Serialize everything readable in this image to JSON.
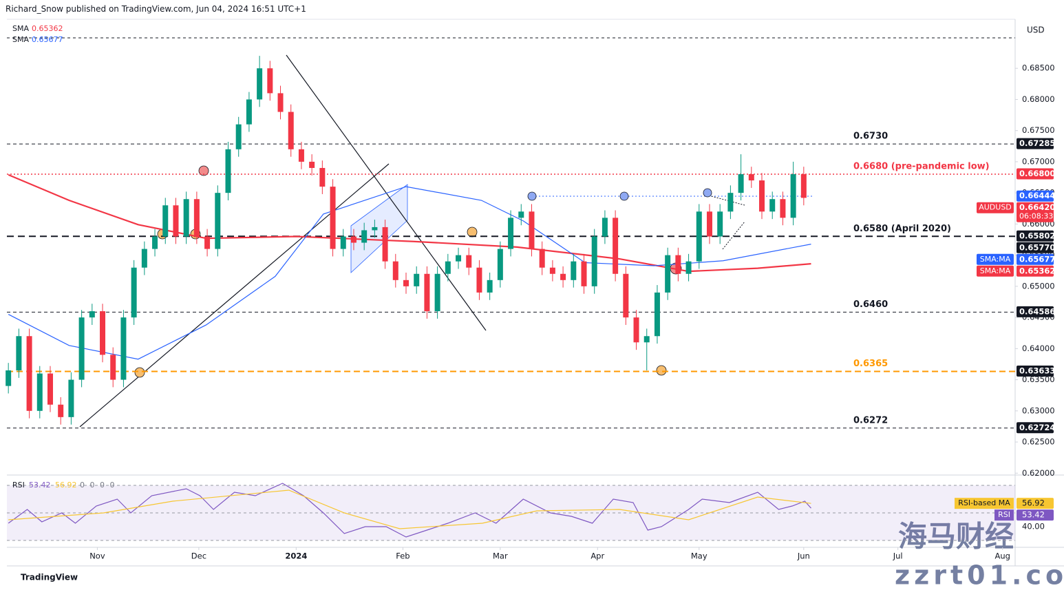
{
  "header": "Richard_Snow published on TradingView.com, Jun 04, 2024 16:51 UTC+1",
  "currency": "USD",
  "footer": "TradingView",
  "watermark": {
    "cn": "海马财经",
    "url": "zzrt01.com"
  },
  "chart_data": [
    {
      "type": "candlestick",
      "up_color": "#089981",
      "down_color": "#f23645",
      "xlim": [
        -0.8,
        96.2
      ],
      "xticks": [
        {
          "value": 8.5,
          "label": "Nov"
        },
        {
          "value": 18.2,
          "label": "Dec"
        },
        {
          "value": 27.5,
          "label": "2024"
        },
        {
          "value": 37.7,
          "label": "Feb"
        },
        {
          "value": 47,
          "label": "Mar"
        },
        {
          "value": 56.3,
          "label": "Apr"
        },
        {
          "value": 66,
          "label": "May"
        },
        {
          "value": 76,
          "label": "Jun"
        },
        {
          "value": 85,
          "label": "Jul"
        },
        {
          "value": 95,
          "label": "Aug"
        }
      ],
      "ylim": [
        0.6197,
        0.69265
      ],
      "yticks": [
        {
          "value": 0.685,
          "label": "0.68500"
        },
        {
          "value": 0.68,
          "label": "0.68000"
        },
        {
          "value": 0.675,
          "label": "0.67500"
        },
        {
          "value": 0.67,
          "label": "0.67000"
        },
        {
          "value": 0.665,
          "label": "0.66500"
        },
        {
          "value": 0.66,
          "label": "0.66000"
        },
        {
          "value": 0.655,
          "label": "0.65500"
        },
        {
          "value": 0.65,
          "label": "0.65000"
        },
        {
          "value": 0.645,
          "label": "0.64500"
        },
        {
          "value": 0.64,
          "label": "0.64000"
        },
        {
          "value": 0.635,
          "label": "0.63500"
        },
        {
          "value": 0.63,
          "label": "0.63000"
        },
        {
          "value": 0.625,
          "label": "0.62500"
        },
        {
          "value": 0.62,
          "label": "0.62000"
        }
      ],
      "open": [
        0.634,
        0.6365,
        0.642,
        0.63,
        0.636,
        0.631,
        0.629,
        0.635,
        0.645,
        0.646,
        0.639,
        0.635,
        0.645,
        0.653,
        0.656,
        0.658,
        0.663,
        0.658,
        0.664,
        0.658,
        0.656,
        0.665,
        0.672,
        0.676,
        0.68,
        0.685,
        0.681,
        0.678,
        0.672,
        0.67,
        0.669,
        0.666,
        0.656,
        0.658,
        0.657,
        0.659,
        0.6595,
        0.654,
        0.651,
        0.65,
        0.652,
        0.646,
        0.652,
        0.654,
        0.655,
        0.653,
        0.649,
        0.651,
        0.656,
        0.661,
        0.662,
        0.656,
        0.653,
        0.652,
        0.651,
        0.654,
        0.65,
        0.658,
        0.661,
        0.652,
        0.645,
        0.641,
        0.642,
        0.649,
        0.655,
        0.652,
        0.654,
        0.662,
        0.658,
        0.662,
        0.665,
        0.668,
        0.667,
        0.662,
        0.664,
        0.661,
        0.668
      ],
      "high": [
        0.6377,
        0.6432,
        0.6432,
        0.6372,
        0.6372,
        0.6322,
        0.6362,
        0.6462,
        0.6472,
        0.6472,
        0.6402,
        0.6462,
        0.6542,
        0.6572,
        0.6592,
        0.6642,
        0.6642,
        0.6652,
        0.6652,
        0.6592,
        0.6662,
        0.6732,
        0.6772,
        0.6812,
        0.687,
        0.6862,
        0.6822,
        0.6792,
        0.6732,
        0.6712,
        0.6702,
        0.6672,
        0.6592,
        0.6592,
        0.6602,
        0.6607,
        0.6607,
        0.6552,
        0.6522,
        0.6532,
        0.6532,
        0.6532,
        0.6552,
        0.6562,
        0.6562,
        0.6542,
        0.6522,
        0.6572,
        0.6622,
        0.6632,
        0.6632,
        0.6572,
        0.6542,
        0.6532,
        0.6552,
        0.6552,
        0.6592,
        0.6622,
        0.6622,
        0.6532,
        0.6462,
        0.6432,
        0.6502,
        0.6562,
        0.6562,
        0.6552,
        0.6632,
        0.6632,
        0.6632,
        0.6662,
        0.6712,
        0.6692,
        0.6682,
        0.6652,
        0.6652,
        0.67,
        0.6692
      ],
      "low": [
        0.6328,
        0.6353,
        0.6288,
        0.6288,
        0.6298,
        0.6278,
        0.6278,
        0.6338,
        0.6438,
        0.6378,
        0.6338,
        0.6338,
        0.6438,
        0.6518,
        0.6548,
        0.6568,
        0.6568,
        0.6568,
        0.6568,
        0.6548,
        0.6548,
        0.6638,
        0.6708,
        0.6748,
        0.6788,
        0.6798,
        0.6768,
        0.6708,
        0.6688,
        0.6678,
        0.6648,
        0.6548,
        0.6548,
        0.6558,
        0.6558,
        0.6578,
        0.6528,
        0.6498,
        0.6488,
        0.6488,
        0.6448,
        0.6448,
        0.6508,
        0.6528,
        0.6518,
        0.6478,
        0.6478,
        0.6498,
        0.6548,
        0.6598,
        0.6548,
        0.6518,
        0.6508,
        0.6498,
        0.6498,
        0.6488,
        0.6488,
        0.6568,
        0.6508,
        0.6438,
        0.6398,
        0.6365,
        0.6408,
        0.6478,
        0.6508,
        0.6508,
        0.6528,
        0.6568,
        0.6568,
        0.6608,
        0.6638,
        0.6658,
        0.6608,
        0.6608,
        0.6598,
        0.6598,
        0.663
      ],
      "close": [
        0.6365,
        0.642,
        0.63,
        0.636,
        0.631,
        0.629,
        0.635,
        0.645,
        0.646,
        0.639,
        0.635,
        0.645,
        0.653,
        0.656,
        0.658,
        0.663,
        0.658,
        0.664,
        0.658,
        0.656,
        0.665,
        0.672,
        0.676,
        0.68,
        0.685,
        0.681,
        0.678,
        0.672,
        0.67,
        0.669,
        0.666,
        0.656,
        0.658,
        0.657,
        0.659,
        0.6595,
        0.654,
        0.651,
        0.65,
        0.652,
        0.646,
        0.652,
        0.654,
        0.655,
        0.653,
        0.649,
        0.651,
        0.656,
        0.661,
        0.662,
        0.656,
        0.653,
        0.652,
        0.651,
        0.654,
        0.65,
        0.658,
        0.661,
        0.652,
        0.645,
        0.641,
        0.642,
        0.649,
        0.655,
        0.652,
        0.654,
        0.662,
        0.658,
        0.662,
        0.665,
        0.668,
        0.667,
        0.662,
        0.664,
        0.661,
        0.668,
        0.6642
      ],
      "lines": [
        {
          "name": "SMA:MA",
          "legend": "SMA",
          "color": "#f23645",
          "width": 2.2,
          "x": [
            0,
            5.8,
            12.4,
            18.9,
            27.5,
            38.7,
            48.6,
            58.4,
            65,
            71.6,
            76.7
          ],
          "values": [
            0.6679,
            0.6638,
            0.6599,
            0.6577,
            0.658,
            0.6572,
            0.6563,
            0.6544,
            0.6524,
            0.6529,
            0.65362
          ]
        },
        {
          "name": "SMA:MA",
          "legend": "SMA",
          "color": "#2962ff",
          "width": 1.2,
          "x": [
            0,
            5.8,
            12.4,
            18.9,
            25.5,
            30.1,
            38,
            45.2,
            49.2,
            55.1,
            61.7,
            68.3,
            76.7
          ],
          "values": [
            0.6455,
            0.6405,
            0.6383,
            0.6438,
            0.6516,
            0.6616,
            0.666,
            0.6638,
            0.6605,
            0.6538,
            0.6533,
            0.6541,
            0.65677
          ]
        }
      ],
      "levels": [
        {
          "value": 0.67285,
          "tag": "0.67285",
          "label": "0.6730",
          "color": "#131722",
          "tag_color": "#131722",
          "dash": "5,4",
          "width": 1
        },
        {
          "value": 0.668,
          "tag": "0.66800",
          "label": "0.6680 (pre-pandemic low)",
          "color": "#f23645",
          "tag_color": "#f23645",
          "dash": "2,3",
          "width": 1.5
        },
        {
          "value": 0.66444,
          "tag": "0.66444",
          "color": "#2962ff",
          "tag_color": "#2962ff",
          "line": false
        },
        {
          "value": 0.65802,
          "tag": "0.65802",
          "label": "0.6580 (April 2020)",
          "color": "#131722",
          "tag_color": "#131722",
          "dash": "10,6",
          "width": 2
        },
        {
          "value": 0.6577,
          "tag": "0.65770",
          "color": "#131722",
          "tag_color": "#131722",
          "line": false
        },
        {
          "value": 0.64586,
          "tag": "0.64586",
          "label": "0.6460",
          "color": "#131722",
          "tag_color": "#131722",
          "dash": "5,4",
          "width": 1
        },
        {
          "value": 0.63633,
          "tag": "0.63633",
          "label": "0.6365",
          "color": "#ff9800",
          "tag_color": "#131722",
          "dash": "9,5",
          "width": 2
        },
        {
          "value": 0.62724,
          "tag": "0.62724",
          "label": "0.6272",
          "color": "#131722",
          "tag_color": "#131722",
          "dash": "5,4",
          "width": 1
        }
      ],
      "price_tag": {
        "symbol": "AUDUSD",
        "value": 0.6642,
        "label": "0.66420",
        "countdown": "06:08:33",
        "color": "#f23645"
      }
    },
    {
      "type": "line",
      "ylim": [
        26,
        74
      ],
      "yticks": [
        {
          "value": 40,
          "label": "40.00"
        }
      ],
      "levels": [
        70,
        50,
        30
      ],
      "band": [
        30,
        70
      ],
      "legend": {
        "name": "RSI",
        "values": [
          53.42,
          56.92
        ],
        "extra": "0 0 0 0"
      },
      "series": [
        {
          "name": "RSI",
          "color": "#7e57c2",
          "x": [
            0,
            1.8,
            3.2,
            5.1,
            6.4,
            8.4,
            10.4,
            11.7,
            13.7,
            17,
            18.3,
            19.6,
            21.6,
            23.6,
            26.2,
            28.2,
            30.1,
            32.1,
            34.1,
            36.1,
            38,
            40,
            42,
            44.6,
            46.6,
            49.2,
            51.8,
            53.8,
            55.8,
            57.8,
            59.7,
            61.1,
            62.4,
            65,
            66.3,
            68.9,
            71.6,
            73.6,
            74.9,
            76.1,
            76.7
          ],
          "values": [
            42.5,
            52.5,
            43.5,
            50,
            42.5,
            55,
            60,
            50,
            62.5,
            67.5,
            62.5,
            52.5,
            65,
            62.5,
            71.5,
            62.5,
            50,
            35,
            40,
            40,
            32.5,
            37.5,
            42.5,
            50,
            42.5,
            60,
            50,
            47.5,
            42.5,
            60,
            57.5,
            37.5,
            40,
            52.5,
            60,
            57.5,
            65,
            52.5,
            55,
            58.5,
            53.42
          ]
        },
        {
          "name": "RSI-based MA",
          "color": "#f7c631",
          "x": [
            0,
            9.1,
            15.7,
            26.8,
            32.1,
            37.4,
            45.3,
            50.5,
            58.4,
            65,
            71.6,
            76.7
          ],
          "values": [
            45,
            50,
            58.5,
            66.5,
            50,
            38.5,
            42.5,
            51.5,
            52.5,
            45,
            61.5,
            56.92
          ]
        }
      ]
    }
  ]
}
